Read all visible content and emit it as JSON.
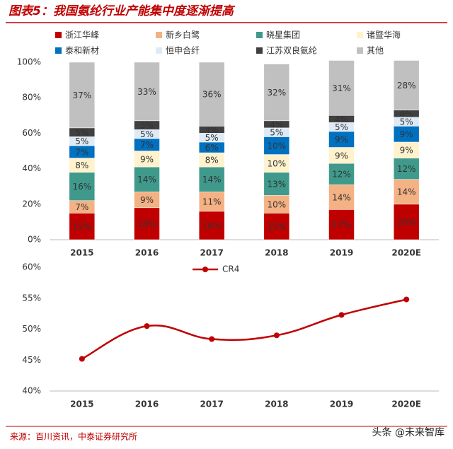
{
  "title": "图表5：我国氨纶行业产能集中度逐渐提高",
  "source": "来源：百川资讯，中泰证券研究所",
  "watermark": "头条 @未来智库",
  "chart_data": [
    {
      "type": "stacked-bar",
      "categories": [
        "2015",
        "2016",
        "2017",
        "2018",
        "2019",
        "2020E"
      ],
      "ylim": [
        0,
        100
      ],
      "yticks": [
        {
          "value": 0,
          "label": "0%"
        },
        {
          "value": 20,
          "label": "20%"
        },
        {
          "value": 40,
          "label": "40%"
        },
        {
          "value": 60,
          "label": "60%"
        },
        {
          "value": 80,
          "label": "80%"
        },
        {
          "value": 100,
          "label": "100%"
        }
      ],
      "series": [
        {
          "name": "浙江华峰",
          "color": "#c00000",
          "values": [
            15,
            18,
            16,
            15,
            17,
            20
          ],
          "value_labels": [
            "15%",
            "18%",
            "16%",
            "15%",
            "17%",
            "20%"
          ]
        },
        {
          "name": "新乡白鹭",
          "color": "#f4b183",
          "values": [
            7,
            9,
            11,
            10,
            14,
            14
          ],
          "value_labels": [
            "7%",
            "9%",
            "11%",
            "10%",
            "14%",
            "14%"
          ]
        },
        {
          "name": "晓星集团",
          "color": "#3f9a8c",
          "values": [
            16,
            14,
            14,
            13,
            12,
            12
          ],
          "value_labels": [
            "16%",
            "14%",
            "14%",
            "13%",
            "12%",
            "12%"
          ]
        },
        {
          "name": "诸暨华海",
          "color": "#fff2cc",
          "values": [
            8,
            9,
            8,
            10,
            9,
            9
          ],
          "value_labels": [
            "8%",
            "9%",
            "8%",
            "10%",
            "9%",
            "9%"
          ]
        },
        {
          "name": "泰和新材",
          "color": "#0070c0",
          "values": [
            7,
            7,
            6,
            10,
            9,
            9
          ],
          "value_labels": [
            "7%",
            "7%",
            "6%",
            "10%",
            "9%",
            "9%"
          ]
        },
        {
          "name": "恒申合纤",
          "color": "#deebf7",
          "values": [
            5,
            5,
            5,
            5,
            5,
            5
          ],
          "value_labels": [
            "5%",
            "5%",
            "5%",
            "5%",
            "5%",
            "5%"
          ]
        },
        {
          "name": "江苏双良氨纶",
          "color": "#404040",
          "values": [
            5,
            5,
            4,
            4,
            4,
            4
          ],
          "value_labels": [
            "5%",
            "5%",
            "4%",
            "4%",
            "4%",
            "4%"
          ]
        },
        {
          "name": "其他",
          "color": "#c0c0c0",
          "values": [
            37,
            33,
            36,
            32,
            31,
            28
          ],
          "value_labels": [
            "37%",
            "33%",
            "36%",
            "32%",
            "31%",
            "28%"
          ]
        }
      ]
    },
    {
      "type": "line",
      "categories": [
        "2015",
        "2016",
        "2017",
        "2018",
        "2019",
        "2020E"
      ],
      "ylim": [
        40,
        60
      ],
      "yticks": [
        {
          "value": 40,
          "label": "40%"
        },
        {
          "value": 45,
          "label": "45%"
        },
        {
          "value": 50,
          "label": "50%"
        },
        {
          "value": 55,
          "label": "55%"
        },
        {
          "value": 60,
          "label": "60%"
        }
      ],
      "series": [
        {
          "name": "CR4",
          "color": "#c00000",
          "values": [
            45.2,
            50.5,
            48.4,
            49.0,
            52.3,
            54.8
          ]
        }
      ]
    }
  ]
}
